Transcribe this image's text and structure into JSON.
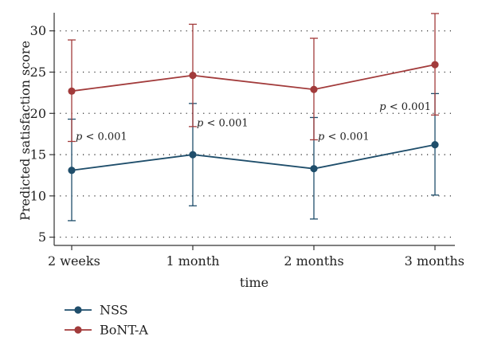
{
  "chart_data": {
    "type": "line",
    "categories": [
      "2 weeks",
      "1 month",
      "2 months",
      "3 months"
    ],
    "xlabel": "time",
    "ylabel": "Predicted satisfaction score",
    "ylim": [
      4,
      32
    ],
    "yticks": [
      5,
      10,
      15,
      20,
      25,
      30
    ],
    "grid": true,
    "legend_position": "bottom-left",
    "series": [
      {
        "name": "NSS",
        "color": "#1f4e6b",
        "values": [
          13.1,
          15.0,
          13.3,
          16.2
        ],
        "ci_low": [
          7.0,
          8.8,
          7.2,
          10.1
        ],
        "ci_high": [
          19.3,
          21.2,
          19.5,
          22.4
        ]
      },
      {
        "name": "BoNT-A",
        "color": "#a23b3b",
        "values": [
          22.7,
          24.6,
          22.9,
          25.9
        ],
        "ci_low": [
          16.6,
          18.4,
          16.8,
          19.8
        ],
        "ci_high": [
          28.9,
          30.8,
          29.1,
          32.1
        ]
      }
    ],
    "annotations": [
      {
        "category": "2 weeks",
        "y": 17.2,
        "italic": "p",
        "text": "< 0.001"
      },
      {
        "category": "1 month",
        "y": 18.8,
        "italic": "p",
        "text": "< 0.001"
      },
      {
        "category": "2 months",
        "y": 17.2,
        "italic": "p",
        "text": "< 0.001"
      },
      {
        "category": "3 months",
        "y": 20.8,
        "italic": "p",
        "text": "< 0.001"
      }
    ]
  }
}
